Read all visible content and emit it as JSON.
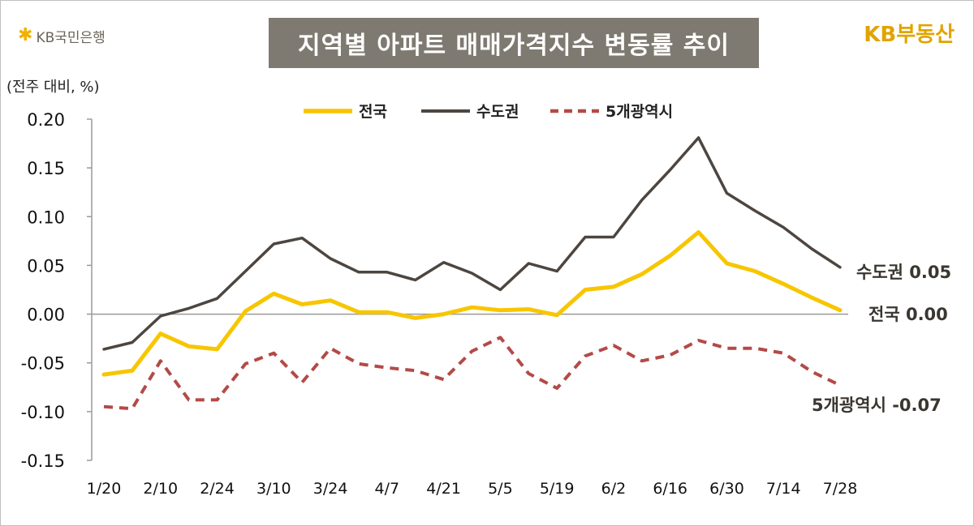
{
  "header": {
    "bank_logo_text": "KB국민은행",
    "brand_logo_text": "KB부동산",
    "title": "지역별 아파트 매매가격지수 변동률 추이"
  },
  "colors": {
    "nationwide": "#f7c600",
    "capital": "#4d4640",
    "metro": "#b34a47",
    "title_bg": "#7f7a71",
    "brand": "#e0a400"
  },
  "chart_data": {
    "type": "line",
    "unit_label": "(전주 대비, %)",
    "ylim": [
      -0.15,
      0.2
    ],
    "yticks": [
      "0.20",
      "0.15",
      "0.10",
      "0.05",
      "0.00",
      "-0.05",
      "-0.10",
      "-0.15"
    ],
    "ytick_values": [
      0.2,
      0.15,
      0.1,
      0.05,
      0.0,
      -0.05,
      -0.1,
      -0.15
    ],
    "x_labels": [
      "1/20",
      "2/10",
      "2/24",
      "3/10",
      "3/24",
      "4/7",
      "4/21",
      "5/5",
      "5/19",
      "6/2",
      "6/16",
      "6/30",
      "7/14",
      "7/28"
    ],
    "legend_position": "top-center",
    "grid": false,
    "series": [
      {
        "name": "전국",
        "style": "solid",
        "values": [
          -0.062,
          -0.058,
          -0.02,
          -0.033,
          -0.036,
          0.003,
          0.021,
          0.01,
          0.014,
          0.002,
          0.002,
          -0.004,
          0.0,
          0.007,
          0.004,
          0.005,
          -0.001,
          0.025,
          0.028,
          0.041,
          0.06,
          0.084,
          0.052,
          0.044,
          0.031,
          0.017,
          0.004
        ],
        "end_label": "전국 0.00"
      },
      {
        "name": "수도권",
        "style": "solid",
        "values": [
          -0.036,
          -0.029,
          -0.002,
          0.006,
          0.016,
          0.044,
          0.072,
          0.078,
          0.057,
          0.043,
          0.043,
          0.035,
          0.053,
          0.042,
          0.025,
          0.052,
          0.044,
          0.079,
          0.079,
          0.117,
          0.148,
          0.181,
          0.124,
          0.106,
          0.089,
          0.067,
          0.048
        ],
        "end_label": "수도권 0.05"
      },
      {
        "name": "5개광역시",
        "style": "dashed",
        "values": [
          -0.095,
          -0.097,
          -0.048,
          -0.088,
          -0.088,
          -0.051,
          -0.04,
          -0.07,
          -0.035,
          -0.051,
          -0.055,
          -0.058,
          -0.067,
          -0.038,
          -0.024,
          -0.061,
          -0.076,
          -0.043,
          -0.032,
          -0.048,
          -0.042,
          -0.027,
          -0.035,
          -0.035,
          -0.04,
          -0.059,
          -0.073
        ],
        "end_label": "5개광역시 -0.07"
      }
    ]
  }
}
